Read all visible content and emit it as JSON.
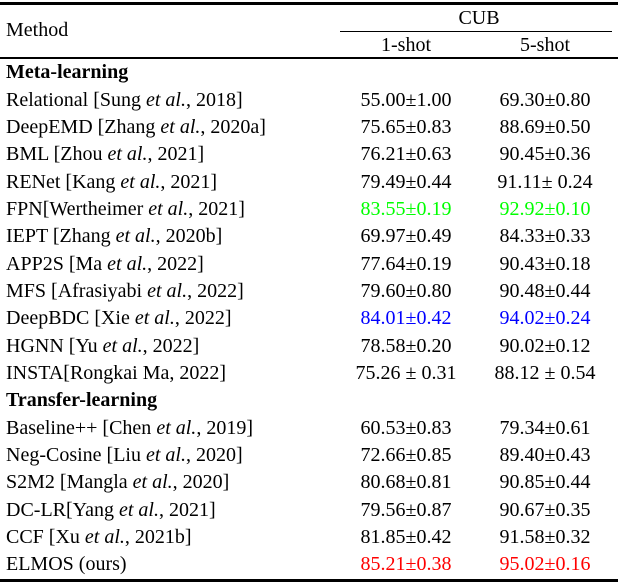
{
  "table": {
    "method_header": "Method",
    "group_header": "CUB",
    "columns": [
      "1-shot",
      "5-shot"
    ],
    "rows": [
      {
        "type": "section",
        "label": "Meta-learning"
      },
      {
        "type": "data",
        "method": "Relational [Sung et al., 2018]",
        "one_shot": "55.00±1.00",
        "five_shot": "69.30±0.80"
      },
      {
        "type": "data",
        "method": "DeepEMD [Zhang et al., 2020a]",
        "one_shot": "75.65±0.83",
        "five_shot": "88.69±0.50"
      },
      {
        "type": "data",
        "method": "BML [Zhou et al., 2021]",
        "one_shot": "76.21±0.63",
        "five_shot": "90.45±0.36"
      },
      {
        "type": "data",
        "method": "RENet [Kang et al., 2021]",
        "one_shot": "79.49±0.44",
        "five_shot": "91.11± 0.24"
      },
      {
        "type": "data",
        "method": "FPN[Wertheimer et al., 2021]",
        "one_shot": "83.55±0.19",
        "five_shot": "92.92±0.10",
        "color": "green"
      },
      {
        "type": "data",
        "method": "IEPT [Zhang et al., 2020b]",
        "one_shot": "69.97±0.49",
        "five_shot": "84.33±0.33"
      },
      {
        "type": "data",
        "method": "APP2S [Ma et al., 2022]",
        "one_shot": "77.64±0.19",
        "five_shot": "90.43±0.18"
      },
      {
        "type": "data",
        "method": "MFS [Afrasiyabi et al., 2022]",
        "one_shot": "79.60±0.80",
        "five_shot": "90.48±0.44"
      },
      {
        "type": "data",
        "method": "DeepBDC [Xie et al., 2022]",
        "one_shot": "84.01±0.42",
        "five_shot": "94.02±0.24",
        "color": "blue"
      },
      {
        "type": "data",
        "method": "HGNN [Yu et al., 2022]",
        "one_shot": "78.58±0.20",
        "five_shot": "90.02±0.12"
      },
      {
        "type": "data",
        "method": "INSTA[Rongkai Ma, 2022]",
        "one_shot": "75.26 ± 0.31",
        "five_shot": "88.12 ± 0.54"
      },
      {
        "type": "section",
        "label": "Transfer-learning"
      },
      {
        "type": "data",
        "method": "Baseline++ [Chen et al., 2019]",
        "one_shot": "60.53±0.83",
        "five_shot": "79.34±0.61"
      },
      {
        "type": "data",
        "method": "Neg-Cosine [Liu et al., 2020]",
        "one_shot": "72.66±0.85",
        "five_shot": "89.40±0.43"
      },
      {
        "type": "data",
        "method": "S2M2 [Mangla et al., 2020]",
        "one_shot": "80.68±0.81",
        "five_shot": "90.85±0.44"
      },
      {
        "type": "data",
        "method": "DC-LR[Yang et al., 2021]",
        "one_shot": "79.56±0.87",
        "five_shot": "90.67±0.35"
      },
      {
        "type": "data",
        "method": "CCF [Xu et al., 2021b]",
        "one_shot": "81.85±0.42",
        "five_shot": "91.58±0.32"
      },
      {
        "type": "data",
        "method": "ELMOS (ours)",
        "one_shot": "85.21±0.38",
        "five_shot": "95.02±0.16",
        "color": "red"
      }
    ]
  },
  "colors": {
    "green": "#00ff00",
    "blue": "#0000ff",
    "red": "#ff0000",
    "text": "#000000",
    "rule": "#000000"
  }
}
